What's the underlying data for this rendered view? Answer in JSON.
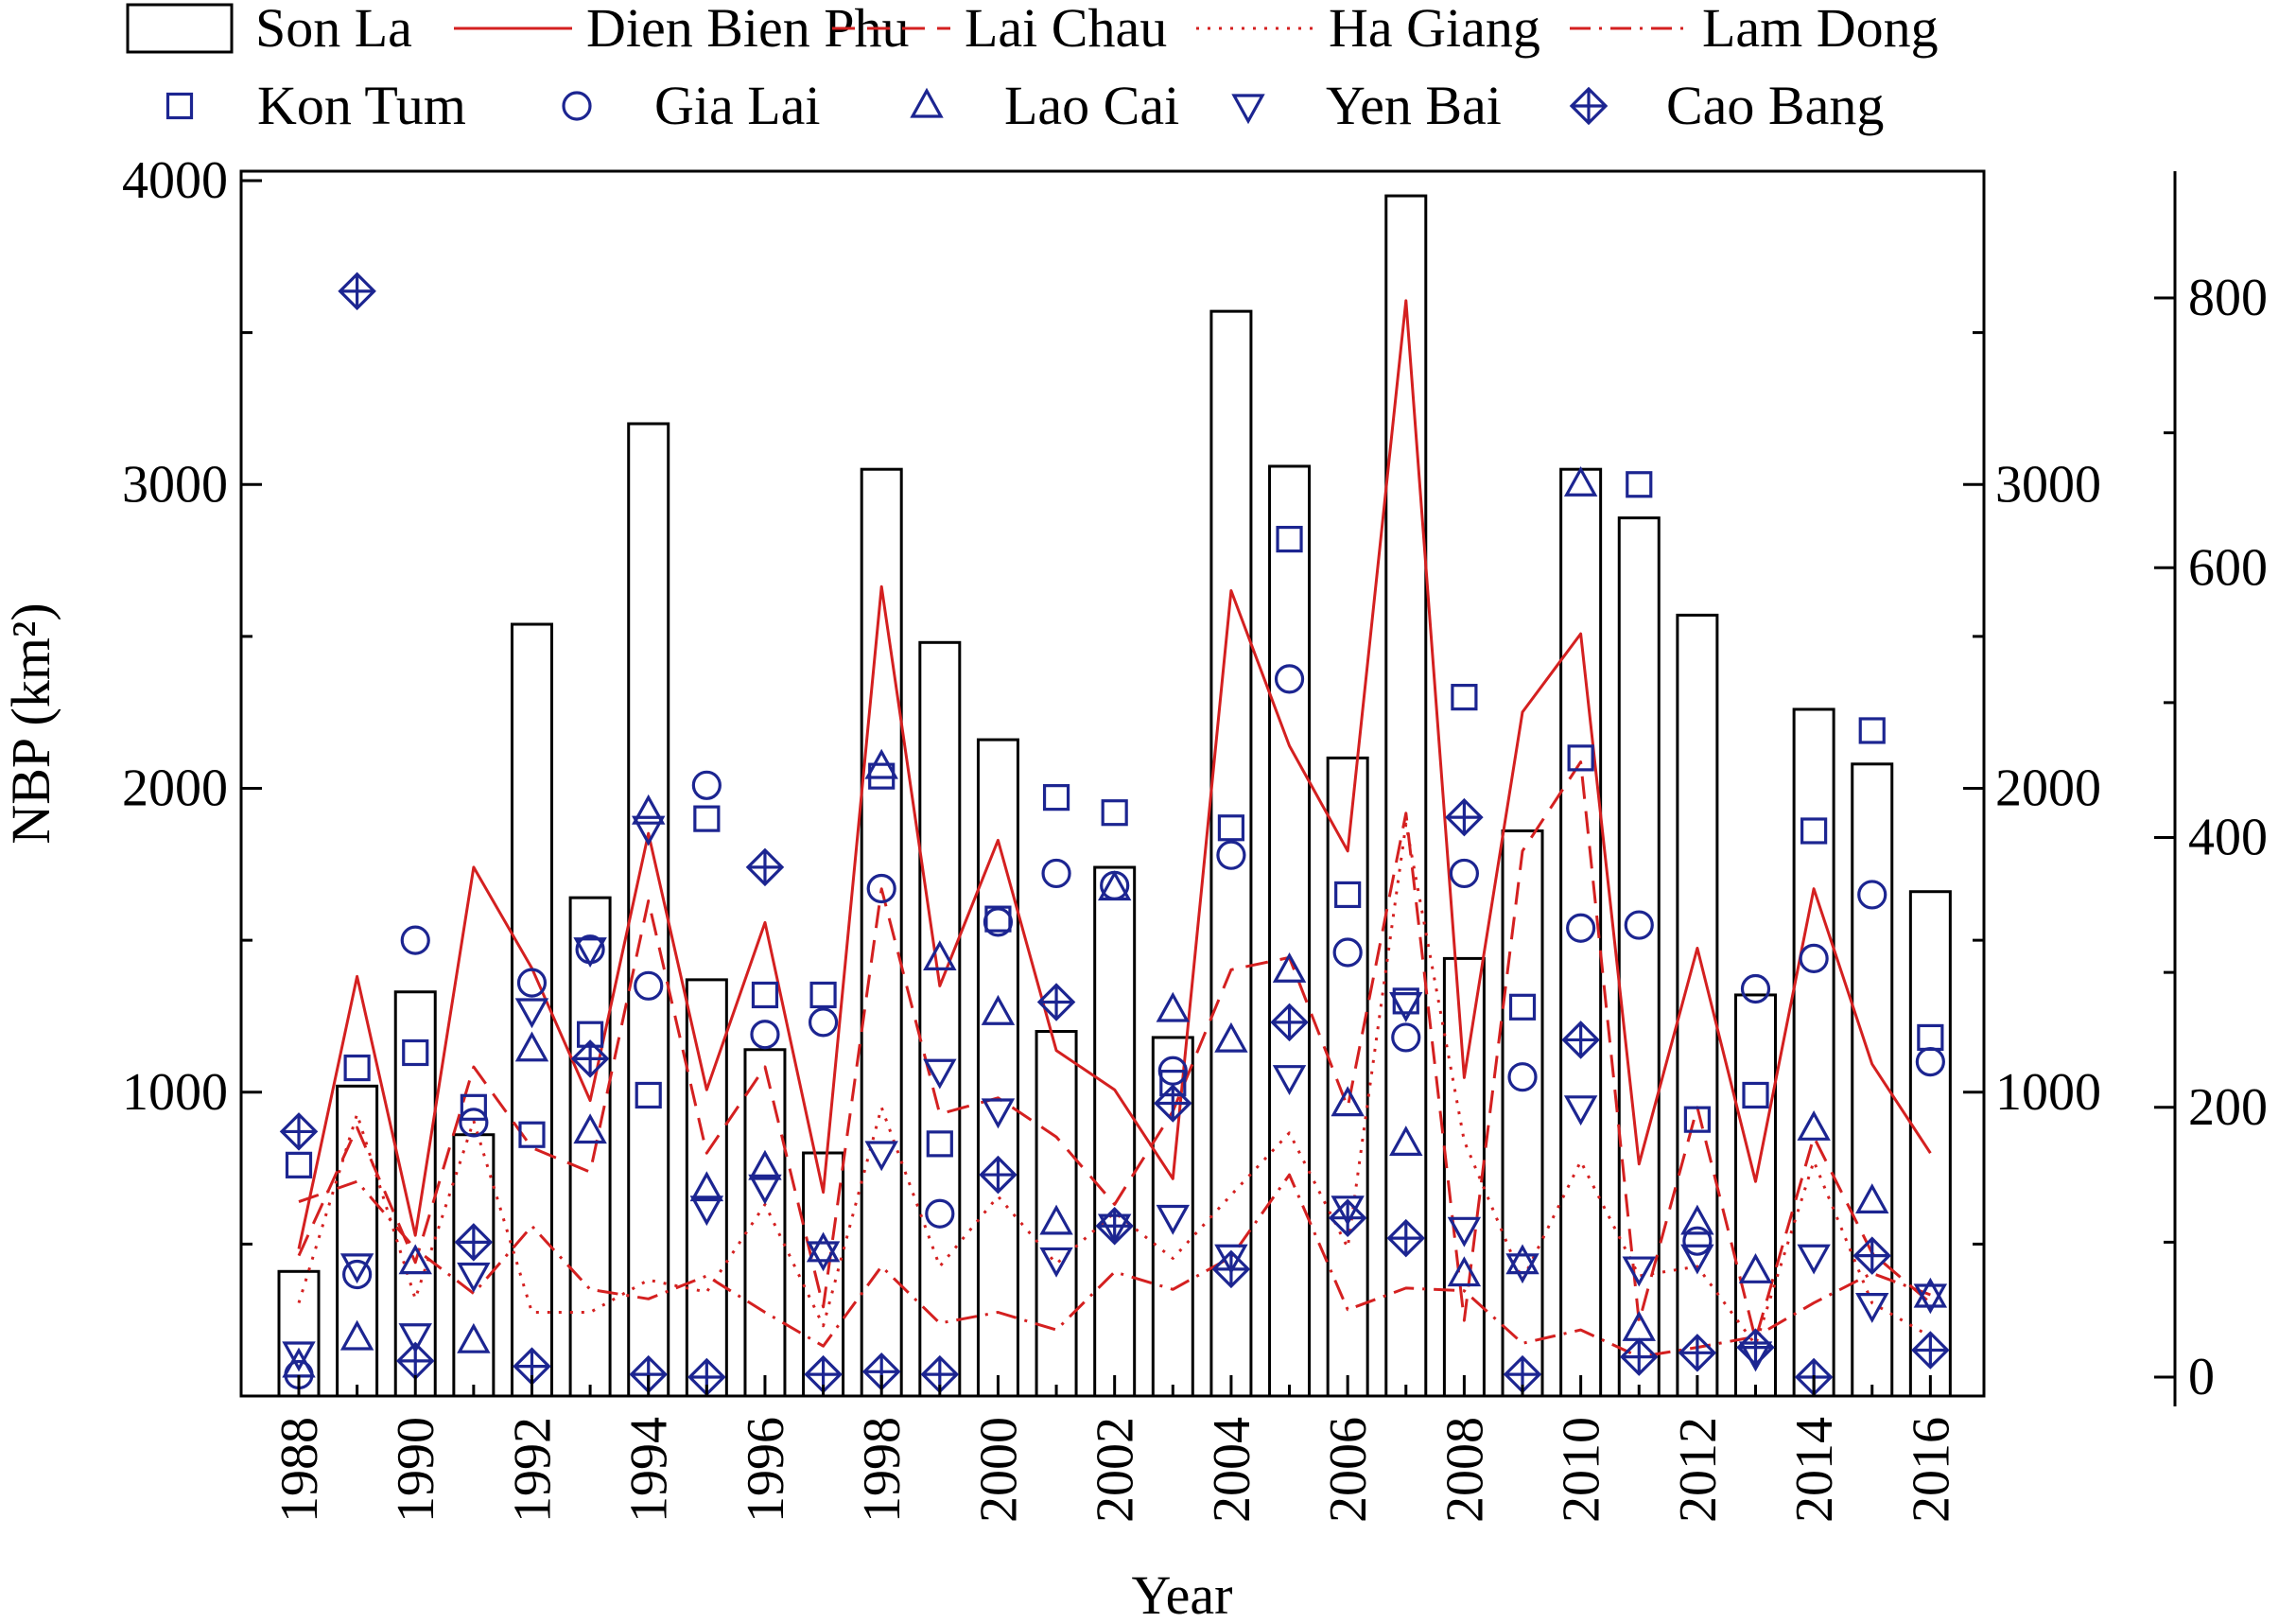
{
  "chart_data": {
    "type": "bar",
    "xlabel": "Year",
    "ylabel": "NBP (km²)",
    "legend_placement": "top",
    "grid": false,
    "x": [
      1988,
      1989,
      1990,
      1991,
      1992,
      1993,
      1994,
      1995,
      1996,
      1997,
      1998,
      1999,
      2000,
      2001,
      2002,
      2003,
      2004,
      2005,
      2006,
      2007,
      2008,
      2009,
      2010,
      2011,
      2012,
      2013,
      2014,
      2015,
      2016
    ],
    "x_tick_labels": [
      "1988",
      "1990",
      "1992",
      "1994",
      "1996",
      "1998",
      "2000",
      "2002",
      "2004",
      "2006",
      "2008",
      "2010",
      "2012",
      "2014",
      "2016"
    ],
    "xlim": [
      1987,
      2017
    ],
    "left_axis": {
      "ylim": [
        0,
        4000
      ],
      "ticks": [
        "1000",
        "2000",
        "3000",
        "4000"
      ]
    },
    "right_axis": {
      "ylim": [
        0,
        900
      ],
      "ticks": [
        "0",
        "200",
        "400",
        "600",
        "800"
      ]
    },
    "inner_right_axis": {
      "ylim": [
        0,
        4000
      ],
      "ticks": [
        "1000",
        "2000",
        "3000"
      ]
    },
    "series": [
      {
        "name": "Son La",
        "kind": "bar",
        "axis": "left",
        "color": "#000000",
        "values": [
          410,
          1020,
          1330,
          860,
          2540,
          1640,
          3200,
          1370,
          1140,
          800,
          3050,
          2480,
          2160,
          1200,
          1740,
          1180,
          3570,
          3060,
          2100,
          3950,
          1440,
          1860,
          3050,
          2890,
          2570,
          1320,
          2260,
          2080,
          1660
        ]
      },
      {
        "name": "Dien Bien Phu",
        "kind": "line",
        "style": "solid",
        "axis": "right",
        "color": "#d42020",
        "values": [
          95,
          297,
          105,
          378,
          303,
          205,
          403,
          213,
          337,
          137,
          586,
          290,
          398,
          242,
          213,
          147,
          583,
          468,
          390,
          798,
          222,
          493,
          551,
          158,
          318,
          145,
          362,
          232,
          166
        ]
      },
      {
        "name": "Lai Chau",
        "kind": "line",
        "style": "dashed",
        "axis": "right",
        "color": "#d42020",
        "values": [
          90,
          185,
          85,
          230,
          170,
          152,
          353,
          166,
          230,
          52,
          362,
          195,
          207,
          178,
          128,
          197,
          302,
          311,
          200,
          418,
          42,
          390,
          456,
          41,
          200,
          28,
          178,
          92,
          55
        ]
      },
      {
        "name": "Ha Giang",
        "kind": "line",
        "style": "dotted",
        "axis": "right",
        "color": "#d42020",
        "values": [
          55,
          195,
          58,
          190,
          48,
          48,
          72,
          63,
          128,
          38,
          200,
          82,
          134,
          84,
          122,
          88,
          135,
          181,
          96,
          410,
          175,
          72,
          160,
          75,
          82,
          24,
          160,
          55,
          30
        ]
      },
      {
        "name": "Lam Dong",
        "kind": "line",
        "style": "dashdot",
        "axis": "right",
        "color": "#d42020",
        "values": [
          130,
          145,
          95,
          62,
          112,
          65,
          58,
          75,
          48,
          23,
          82,
          40,
          48,
          35,
          78,
          65,
          89,
          150,
          50,
          66,
          64,
          25,
          35,
          15,
          22,
          30,
          55,
          77,
          61
        ]
      },
      {
        "name": "Kon Tum",
        "kind": "marker",
        "marker": "square",
        "axis": "inner_right",
        "color": "#1c2591",
        "values": [
          760,
          1080,
          1130,
          950,
          860,
          1190,
          990,
          1900,
          1320,
          1320,
          2040,
          830,
          1570,
          1970,
          1920,
          1030,
          1870,
          2820,
          1650,
          1300,
          2300,
          1280,
          2100,
          3000,
          910,
          990,
          1860,
          2190,
          1180
        ]
      },
      {
        "name": "Gia Lai",
        "kind": "marker",
        "marker": "circle",
        "axis": "inner_right",
        "color": "#1c2591",
        "values": [
          70,
          400,
          1500,
          900,
          1360,
          1470,
          1350,
          2010,
          1190,
          1230,
          1670,
          600,
          1560,
          1720,
          1680,
          1070,
          1780,
          2360,
          1460,
          1180,
          1720,
          1050,
          1540,
          1550,
          510,
          1340,
          1440,
          1650,
          1100
        ]
      },
      {
        "name": "Lao Cai",
        "kind": "marker",
        "marker": "triangle-up",
        "axis": "inner_right",
        "color": "#1c2591",
        "values": [
          100,
          190,
          440,
          180,
          1140,
          870,
          1920,
          680,
          750,
          480,
          2070,
          1440,
          1260,
          570,
          1670,
          1270,
          1170,
          1400,
          960,
          830,
          400,
          440,
          3000,
          220,
          570,
          410,
          880,
          640,
          330
        ]
      },
      {
        "name": "Yen Bai",
        "kind": "marker",
        "marker": "triangle-down",
        "axis": "inner_right",
        "color": "#1c2591",
        "values": [
          140,
          430,
          200,
          400,
          1270,
          1470,
          1870,
          620,
          690,
          470,
          800,
          1070,
          940,
          450,
          560,
          590,
          460,
          1050,
          620,
          1290,
          550,
          430,
          950,
          420,
          460,
          140,
          460,
          300,
          330
        ]
      },
      {
        "name": "Cao Bang",
        "kind": "marker",
        "marker": "crossed-diamond",
        "axis": "right",
        "color": "#1c2591",
        "values": [
          182,
          805,
          12,
          100,
          8,
          236,
          2,
          0,
          378,
          2,
          4,
          2,
          150,
          278,
          112,
          203,
          80,
          263,
          118,
          103,
          415,
          2,
          250,
          15,
          18,
          22,
          0,
          90,
          20
        ]
      }
    ]
  }
}
